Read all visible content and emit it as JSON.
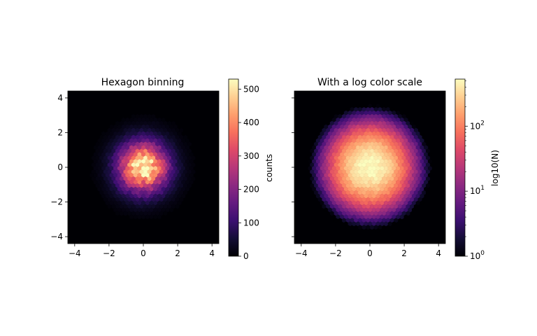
{
  "chart_data": [
    {
      "type": "heatmap",
      "subtype": "hexbin",
      "title": "Hexagon binning",
      "xlim": [
        -4.4,
        4.4
      ],
      "ylim": [
        -4.4,
        4.4
      ],
      "x_ticks": [
        -4,
        -2,
        0,
        2,
        4
      ],
      "y_ticks": [
        -4,
        -2,
        0,
        2,
        4
      ],
      "x_tick_labels": [
        "−4",
        "−2",
        "0",
        "2",
        "4"
      ],
      "y_tick_labels": [
        "−4",
        "−2",
        "0",
        "2",
        "4"
      ],
      "colormap": "magma",
      "color_scale": "linear",
      "distribution": {
        "center": [
          0,
          0
        ],
        "std": [
          1,
          1
        ],
        "peak_count": 530
      },
      "colorbar": {
        "label": "counts",
        "range": [
          0,
          530
        ],
        "ticks": [
          0,
          100,
          200,
          300,
          400,
          500
        ],
        "tick_labels": [
          "0",
          "100",
          "200",
          "300",
          "400",
          "500"
        ]
      },
      "grid": false
    },
    {
      "type": "heatmap",
      "subtype": "hexbin",
      "title": "With a log color scale",
      "xlim": [
        -4.4,
        4.4
      ],
      "ylim": [
        -4.4,
        4.4
      ],
      "x_ticks": [
        -4,
        -2,
        0,
        2,
        4
      ],
      "y_ticks": [
        -4,
        -2,
        0,
        2,
        4
      ],
      "x_tick_labels": [
        "−4",
        "−2",
        "0",
        "2",
        "4"
      ],
      "y_tick_labels": [],
      "colormap": "magma",
      "color_scale": "log",
      "distribution": {
        "center": [
          0,
          0
        ],
        "std": [
          1,
          1
        ],
        "peak_count": 530
      },
      "colorbar": {
        "label": "log10(N)",
        "range": [
          1,
          530
        ],
        "ticks": [
          1,
          10,
          100
        ],
        "tick_labels": [
          {
            "base": "10",
            "exp": "0"
          },
          {
            "base": "10",
            "exp": "1"
          },
          {
            "base": "10",
            "exp": "2"
          }
        ]
      },
      "grid": false
    }
  ],
  "colors": {
    "magma": [
      "#000004",
      "#140e36",
      "#3b0f70",
      "#641a80",
      "#8c2981",
      "#b73779",
      "#de4968",
      "#f7705c",
      "#fe9f6d",
      "#fecf92",
      "#fcfdbf"
    ]
  }
}
